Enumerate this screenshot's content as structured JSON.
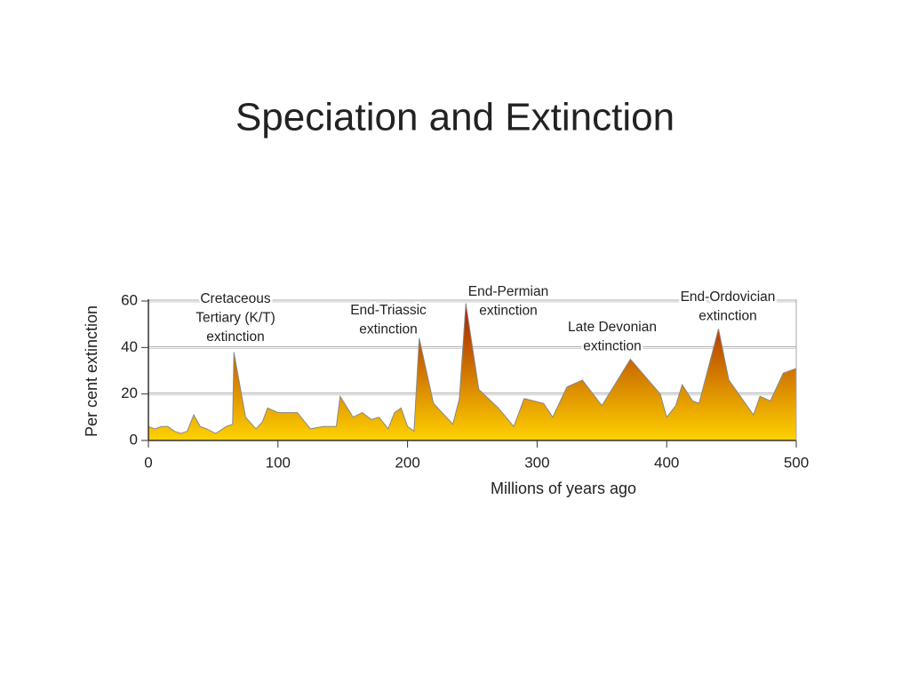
{
  "chart_data": {
    "type": "area",
    "title": "Speciation and Extinction",
    "xlabel": "Millions of years ago",
    "ylabel": "Per cent extinction",
    "x": [
      0,
      5,
      10,
      15,
      20,
      25,
      30,
      35,
      40,
      45,
      52,
      60,
      65,
      66,
      75,
      83,
      88,
      92,
      100,
      110,
      115,
      125,
      135,
      145,
      148,
      158,
      165,
      172,
      178,
      185,
      190,
      195,
      200,
      205,
      209,
      220,
      230,
      235,
      240,
      245,
      255,
      270,
      282,
      290,
      305,
      312,
      323,
      335,
      350,
      372,
      395,
      400,
      407,
      412,
      420,
      425,
      440,
      448,
      467,
      472,
      480,
      490,
      500
    ],
    "values": [
      6,
      5,
      6,
      6,
      4,
      3,
      4,
      11,
      6,
      5,
      3,
      6,
      7,
      38,
      10,
      5,
      8,
      14,
      12,
      12,
      12,
      5,
      6,
      6,
      19,
      10,
      12,
      9,
      10,
      5,
      12,
      14,
      6,
      4,
      44,
      16,
      10,
      7,
      18,
      59,
      22,
      14,
      6,
      18,
      16,
      10,
      23,
      26,
      15,
      35,
      20,
      10,
      15,
      24,
      17,
      16,
      48,
      26,
      11,
      19,
      17,
      29,
      31
    ],
    "xlim": [
      0,
      500
    ],
    "xticks": [
      0,
      100,
      200,
      300,
      400,
      500
    ],
    "ylim": [
      0,
      60
    ],
    "yticks": [
      0,
      20,
      40,
      60
    ],
    "grid": true,
    "colors": {
      "top": "#a01800",
      "bottom": "#ffd200"
    },
    "annotations": [
      {
        "lines": [
          "Cretaceous",
          "Tertiary (K/T)",
          "extinction"
        ]
      },
      {
        "lines": [
          "End-Triassic",
          "extinction"
        ]
      },
      {
        "lines": [
          "End-Permian",
          "extinction"
        ]
      },
      {
        "lines": [
          "Late Devonian",
          "extinction"
        ]
      },
      {
        "lines": [
          "End-Ordovician",
          "extinction"
        ]
      }
    ]
  }
}
